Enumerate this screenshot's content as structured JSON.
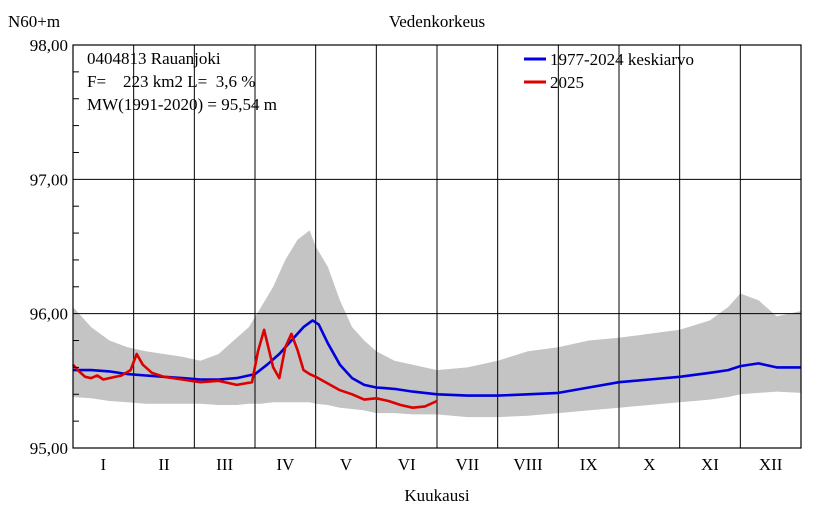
{
  "chart_data": {
    "type": "line",
    "title": "Vedenkorkeus",
    "ylabel": "N60+m",
    "xlabel": "Kuukausi",
    "ylim": [
      95.0,
      98.0
    ],
    "yticks": [
      "95,00",
      "96,00",
      "97,00",
      "98,00"
    ],
    "y_tick_values": [
      95.0,
      96.0,
      97.0,
      98.0
    ],
    "months": [
      "I",
      "II",
      "III",
      "IV",
      "V",
      "VI",
      "VII",
      "VIII",
      "IX",
      "X",
      "XI",
      "XII"
    ],
    "grid": true,
    "legend_position": "top-right",
    "info": {
      "station": "0404813 Rauanjoki",
      "area": "F=    223 km2 L=  3,6 %",
      "mean": "MW(1991-2020) = 95,54 m"
    },
    "series": [
      {
        "name": "1977-2024 keskiarvo",
        "color": "#0000dd",
        "x": [
          0,
          0.3,
          0.6,
          0.9,
          1.2,
          1.5,
          1.8,
          2.1,
          2.4,
          2.7,
          3.0,
          3.2,
          3.4,
          3.6,
          3.8,
          3.95,
          4.05,
          4.2,
          4.4,
          4.6,
          4.8,
          5.0,
          5.3,
          5.6,
          6.0,
          6.5,
          7.0,
          7.5,
          8.0,
          8.5,
          9.0,
          9.5,
          10.0,
          10.5,
          10.8,
          11.0,
          11.3,
          11.6,
          12.0
        ],
        "values": [
          95.58,
          95.58,
          95.57,
          95.55,
          95.54,
          95.53,
          95.52,
          95.51,
          95.51,
          95.52,
          95.55,
          95.62,
          95.7,
          95.8,
          95.9,
          95.95,
          95.92,
          95.78,
          95.62,
          95.52,
          95.47,
          95.45,
          95.44,
          95.42,
          95.4,
          95.39,
          95.39,
          95.4,
          95.41,
          95.45,
          95.49,
          95.51,
          95.53,
          95.56,
          95.58,
          95.61,
          95.63,
          95.6,
          95.6
        ]
      },
      {
        "name": "2025",
        "color": "#dd0000",
        "x": [
          0,
          0.1,
          0.2,
          0.3,
          0.4,
          0.5,
          0.6,
          0.8,
          0.95,
          1.05,
          1.15,
          1.3,
          1.5,
          1.8,
          2.1,
          2.4,
          2.7,
          2.95,
          3.05,
          3.15,
          3.3,
          3.4,
          3.5,
          3.6,
          3.7,
          3.8,
          3.9,
          4.0,
          4.2,
          4.4,
          4.6,
          4.8,
          5.0,
          5.2,
          5.4,
          5.6,
          5.8,
          6.0
        ],
        "values": [
          95.62,
          95.57,
          95.53,
          95.52,
          95.54,
          95.51,
          95.52,
          95.54,
          95.58,
          95.7,
          95.62,
          95.56,
          95.53,
          95.51,
          95.49,
          95.5,
          95.47,
          95.49,
          95.72,
          95.88,
          95.6,
          95.52,
          95.75,
          95.85,
          95.73,
          95.58,
          95.55,
          95.53,
          95.48,
          95.43,
          95.4,
          95.36,
          95.37,
          95.35,
          95.32,
          95.3,
          95.31,
          95.35
        ]
      }
    ],
    "range_band": {
      "color": "#c4c4c4",
      "x": [
        0,
        0.3,
        0.6,
        0.9,
        1.2,
        1.5,
        1.8,
        2.1,
        2.4,
        2.7,
        2.9,
        3.1,
        3.3,
        3.5,
        3.7,
        3.9,
        4.0,
        4.2,
        4.4,
        4.6,
        4.8,
        5.0,
        5.3,
        5.6,
        6.0,
        6.5,
        7.0,
        7.5,
        8.0,
        8.5,
        9.0,
        9.5,
        10.0,
        10.5,
        10.8,
        11.0,
        11.3,
        11.6,
        12.0
      ],
      "upper": [
        96.05,
        95.9,
        95.8,
        95.75,
        95.72,
        95.7,
        95.68,
        95.65,
        95.7,
        95.82,
        95.9,
        96.05,
        96.2,
        96.4,
        96.55,
        96.62,
        96.5,
        96.35,
        96.1,
        95.9,
        95.8,
        95.72,
        95.65,
        95.62,
        95.58,
        95.6,
        95.65,
        95.72,
        95.75,
        95.8,
        95.82,
        95.85,
        95.88,
        95.95,
        96.05,
        96.15,
        96.1,
        95.98,
        96.02
      ],
      "lower": [
        95.38,
        95.37,
        95.35,
        95.34,
        95.33,
        95.33,
        95.33,
        95.33,
        95.32,
        95.32,
        95.33,
        95.33,
        95.34,
        95.34,
        95.34,
        95.34,
        95.33,
        95.32,
        95.3,
        95.29,
        95.28,
        95.26,
        95.26,
        95.25,
        95.25,
        95.23,
        95.23,
        95.24,
        95.26,
        95.28,
        95.3,
        95.32,
        95.34,
        95.36,
        95.38,
        95.4,
        95.41,
        95.42,
        95.41
      ]
    }
  }
}
